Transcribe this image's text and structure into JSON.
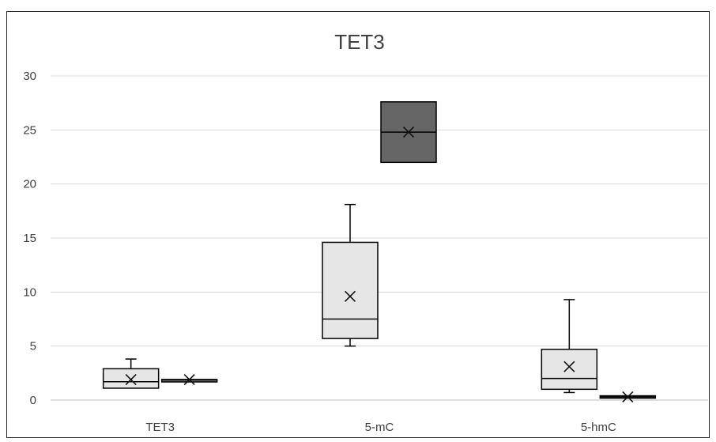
{
  "chart_data": {
    "type": "box",
    "title": "TET3",
    "xlabel": "",
    "ylabel": "",
    "ylim": [
      0,
      30
    ],
    "yticks": [
      0,
      5,
      10,
      15,
      20,
      25,
      30
    ],
    "grid": true,
    "legend": "none",
    "categories": [
      "TET3",
      "5-mC",
      "5-hmC"
    ],
    "series": [
      {
        "color": "#e6e6e6",
        "boxes": [
          {
            "category": "TET3",
            "min": 1.1,
            "q1": 1.1,
            "median": 1.7,
            "q3": 2.9,
            "max": 3.8,
            "mean": 1.9
          },
          {
            "category": "5-mC",
            "min": 5.0,
            "q1": 5.7,
            "median": 7.5,
            "q3": 14.6,
            "max": 18.1,
            "mean": 9.6
          },
          {
            "category": "5-hmC",
            "min": 0.7,
            "q1": 1.0,
            "median": 2.0,
            "q3": 4.7,
            "max": 9.3,
            "mean": 3.1
          }
        ]
      },
      {
        "color": "#666666",
        "boxes": [
          {
            "category": "TET3",
            "min": 1.9,
            "q1": 1.9,
            "median": 1.9,
            "q3": 1.9,
            "max": 1.9,
            "mean": 1.9
          },
          {
            "category": "5-mC",
            "min": 22.0,
            "q1": 22.0,
            "median": 24.8,
            "q3": 27.6,
            "max": 27.6,
            "mean": 24.8
          },
          {
            "category": "5-hmC",
            "min": 0.3,
            "q1": 0.3,
            "median": 0.3,
            "q3": 0.4,
            "max": 0.4,
            "mean": 0.3
          }
        ]
      }
    ]
  }
}
